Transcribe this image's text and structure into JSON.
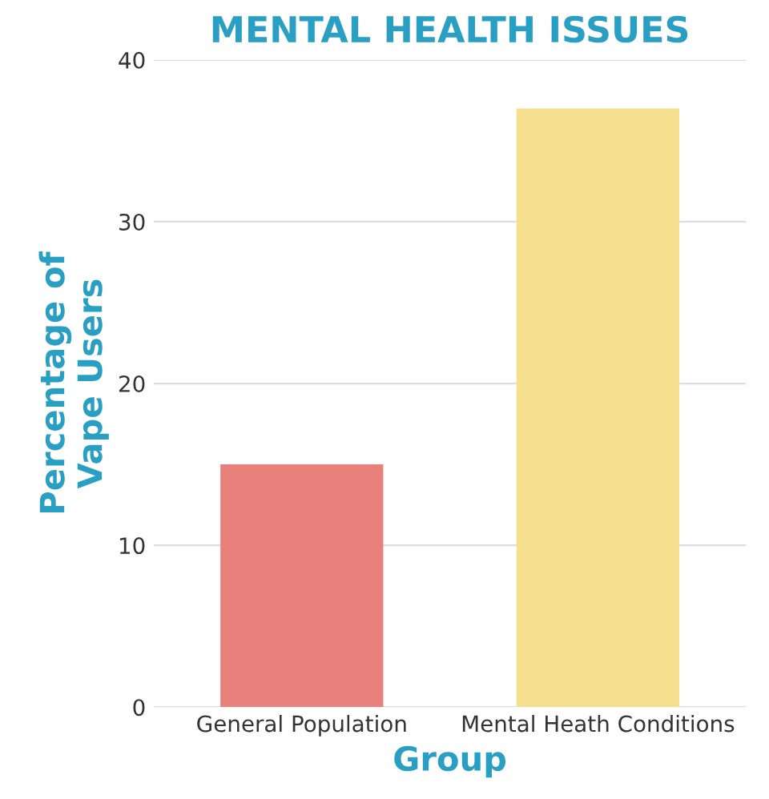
{
  "chart_data": {
    "type": "bar",
    "title": "MENTAL HEALTH ISSUES",
    "categories": [
      "General Population",
      "Mental Heath Conditions"
    ],
    "values": [
      15,
      37
    ],
    "colors": [
      "#e8807c",
      "#f5e08f"
    ],
    "xlabel": "Group",
    "ylabel": "Percentage of\nVape Users",
    "ylim": [
      0,
      40
    ],
    "yticks": [
      0,
      10,
      20,
      30,
      40
    ],
    "grid": "y"
  }
}
